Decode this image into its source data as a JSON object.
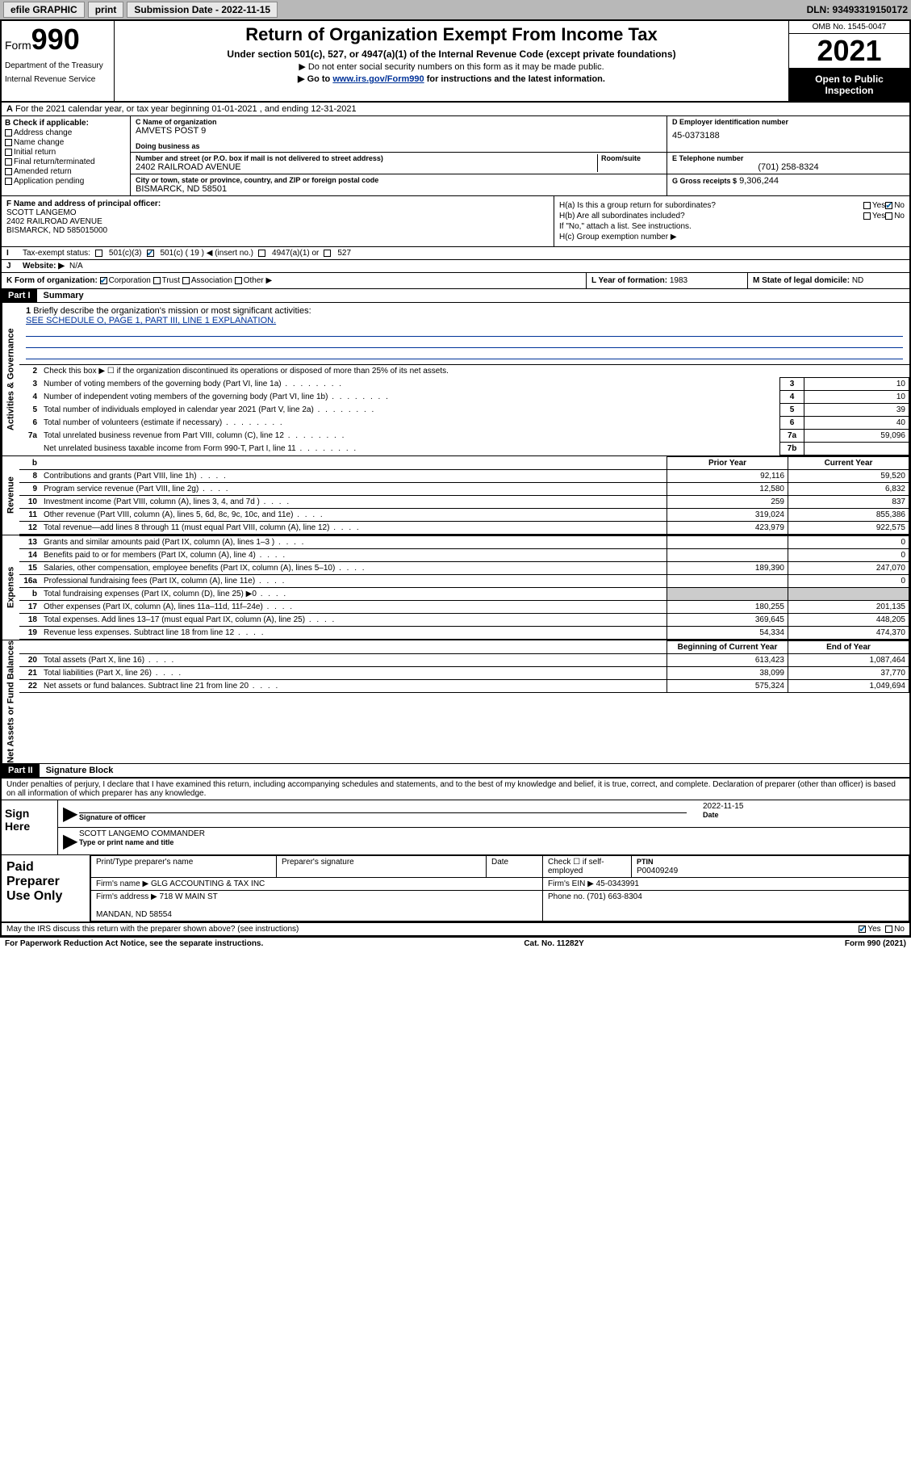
{
  "topbar": {
    "efile": "efile GRAPHIC",
    "print": "print",
    "sub_label": "Submission Date - 2022-11-15",
    "dln": "DLN: 93493319150172"
  },
  "header": {
    "form_prefix": "Form",
    "form_num": "990",
    "dept": "Department of the Treasury",
    "irs": "Internal Revenue Service",
    "title": "Return of Organization Exempt From Income Tax",
    "sub1": "Under section 501(c), 527, or 4947(a)(1) of the Internal Revenue Code (except private foundations)",
    "sub2": "▶ Do not enter social security numbers on this form as it may be made public.",
    "sub3_pre": "▶ Go to ",
    "sub3_link": "www.irs.gov/Form990",
    "sub3_post": " for instructions and the latest information.",
    "omb": "OMB No. 1545-0047",
    "year": "2021",
    "open": "Open to Public Inspection"
  },
  "row_a": "For the 2021 calendar year, or tax year beginning 01-01-2021   , and ending 12-31-2021",
  "col_b": {
    "label": "B Check if applicable:",
    "items": [
      "Address change",
      "Name change",
      "Initial return",
      "Final return/terminated",
      "Amended return",
      "Application pending"
    ]
  },
  "id": {
    "c_label": "C Name of organization",
    "c_name": "AMVETS POST 9",
    "dba_label": "Doing business as",
    "addr_label": "Number and street (or P.O. box if mail is not delivered to street address)",
    "room_label": "Room/suite",
    "addr": "2402 RAILROAD AVENUE",
    "city_label": "City or town, state or province, country, and ZIP or foreign postal code",
    "city": "BISMARCK, ND  58501",
    "d_label": "D Employer identification number",
    "d_val": "45-0373188",
    "e_label": "E Telephone number",
    "e_val": "(701) 258-8324",
    "g_label": "G Gross receipts $",
    "g_val": "9,306,244"
  },
  "f": {
    "label": "F  Name and address of principal officer:",
    "name": "SCOTT LANGEMO",
    "addr1": "2402 RAILROAD AVENUE",
    "addr2": "BISMARCK, ND  585015000"
  },
  "h": {
    "a": "H(a)  Is this a group return for subordinates?",
    "b": "H(b)  Are all subordinates included?",
    "b_note": "If \"No,\" attach a list. See instructions.",
    "c": "H(c)  Group exemption number ▶"
  },
  "i": {
    "label": "Tax-exempt status:",
    "opt1": "501(c)(3)",
    "opt2": "501(c) ( 19 ) ◀ (insert no.)",
    "opt3": "4947(a)(1) or",
    "opt4": "527"
  },
  "j": {
    "label": "Website: ▶",
    "val": "N/A"
  },
  "k": {
    "label": "K Form of organization:",
    "opts": [
      "Corporation",
      "Trust",
      "Association",
      "Other ▶"
    ]
  },
  "l": {
    "label": "L Year of formation:",
    "val": "1983"
  },
  "m": {
    "label": "M State of legal domicile:",
    "val": "ND"
  },
  "part1": {
    "tab": "Part I",
    "title": "Summary"
  },
  "vtabs": {
    "gov": "Activities & Governance",
    "rev": "Revenue",
    "exp": "Expenses",
    "net": "Net Assets or Fund Balances"
  },
  "mission": {
    "q1": "Briefly describe the organization's mission or most significant activities:",
    "line": "SEE SCHEDULE O, PAGE 1, PART III, LINE 1 EXPLANATION."
  },
  "gov_lines": [
    {
      "n": "2",
      "desc": "Check this box ▶ ☐  if the organization discontinued its operations or disposed of more than 25% of its net assets."
    },
    {
      "n": "3",
      "desc": "Number of voting members of the governing body (Part VI, line 1a)",
      "box": "3",
      "val": "10"
    },
    {
      "n": "4",
      "desc": "Number of independent voting members of the governing body (Part VI, line 1b)",
      "box": "4",
      "val": "10"
    },
    {
      "n": "5",
      "desc": "Total number of individuals employed in calendar year 2021 (Part V, line 2a)",
      "box": "5",
      "val": "39"
    },
    {
      "n": "6",
      "desc": "Total number of volunteers (estimate if necessary)",
      "box": "6",
      "val": "40"
    },
    {
      "n": "7a",
      "desc": "Total unrelated business revenue from Part VIII, column (C), line 12",
      "box": "7a",
      "val": "59,096"
    },
    {
      "n": "",
      "desc": "Net unrelated business taxable income from Form 990-T, Part I, line 11",
      "box": "7b",
      "val": ""
    }
  ],
  "fin_head": {
    "b": "b",
    "prior": "Prior Year",
    "curr": "Current Year"
  },
  "revenue": [
    {
      "n": "8",
      "desc": "Contributions and grants (Part VIII, line 1h)",
      "p": "92,116",
      "c": "59,520"
    },
    {
      "n": "9",
      "desc": "Program service revenue (Part VIII, line 2g)",
      "p": "12,580",
      "c": "6,832"
    },
    {
      "n": "10",
      "desc": "Investment income (Part VIII, column (A), lines 3, 4, and 7d )",
      "p": "259",
      "c": "837"
    },
    {
      "n": "11",
      "desc": "Other revenue (Part VIII, column (A), lines 5, 6d, 8c, 9c, 10c, and 11e)",
      "p": "319,024",
      "c": "855,386"
    },
    {
      "n": "12",
      "desc": "Total revenue—add lines 8 through 11 (must equal Part VIII, column (A), line 12)",
      "p": "423,979",
      "c": "922,575"
    }
  ],
  "expenses": [
    {
      "n": "13",
      "desc": "Grants and similar amounts paid (Part IX, column (A), lines 1–3 )",
      "p": "",
      "c": "0"
    },
    {
      "n": "14",
      "desc": "Benefits paid to or for members (Part IX, column (A), line 4)",
      "p": "",
      "c": "0"
    },
    {
      "n": "15",
      "desc": "Salaries, other compensation, employee benefits (Part IX, column (A), lines 5–10)",
      "p": "189,390",
      "c": "247,070"
    },
    {
      "n": "16a",
      "desc": "Professional fundraising fees (Part IX, column (A), line 11e)",
      "p": "",
      "c": "0"
    },
    {
      "n": "b",
      "desc": "Total fundraising expenses (Part IX, column (D), line 25) ▶0",
      "p": "GREY",
      "c": "GREY"
    },
    {
      "n": "17",
      "desc": "Other expenses (Part IX, column (A), lines 11a–11d, 11f–24e)",
      "p": "180,255",
      "c": "201,135"
    },
    {
      "n": "18",
      "desc": "Total expenses. Add lines 13–17 (must equal Part IX, column (A), line 25)",
      "p": "369,645",
      "c": "448,205"
    },
    {
      "n": "19",
      "desc": "Revenue less expenses. Subtract line 18 from line 12",
      "p": "54,334",
      "c": "474,370"
    }
  ],
  "net_head": {
    "prior": "Beginning of Current Year",
    "curr": "End of Year"
  },
  "net": [
    {
      "n": "20",
      "desc": "Total assets (Part X, line 16)",
      "p": "613,423",
      "c": "1,087,464"
    },
    {
      "n": "21",
      "desc": "Total liabilities (Part X, line 26)",
      "p": "38,099",
      "c": "37,770"
    },
    {
      "n": "22",
      "desc": "Net assets or fund balances. Subtract line 21 from line 20",
      "p": "575,324",
      "c": "1,049,694"
    }
  ],
  "part2": {
    "tab": "Part II",
    "title": "Signature Block"
  },
  "decl": "Under penalties of perjury, I declare that I have examined this return, including accompanying schedules and statements, and to the best of my knowledge and belief, it is true, correct, and complete. Declaration of preparer (other than officer) is based on all information of which preparer has any knowledge.",
  "sign": {
    "here": "Sign Here",
    "sig_label": "Signature of officer",
    "date_label": "Date",
    "date_val": "2022-11-15",
    "name": "SCOTT LANGEMO  COMMANDER",
    "name_label": "Type or print name and title"
  },
  "paid": {
    "title": "Paid Preparer Use Only",
    "h1": "Print/Type preparer's name",
    "h2": "Preparer's signature",
    "h3": "Date",
    "h4_pre": "Check ☐ if self-employed",
    "h5": "PTIN",
    "ptin": "P00409249",
    "firm_label": "Firm's name    ▶",
    "firm": "GLG ACCOUNTING & TAX INC",
    "ein_label": "Firm's EIN ▶",
    "ein": "45-0343991",
    "addr_label": "Firm's address ▶",
    "addr1": "718 W MAIN ST",
    "addr2": "MANDAN, ND  58554",
    "phone_label": "Phone no.",
    "phone": "(701) 663-8304"
  },
  "discuss": "May the IRS discuss this return with the preparer shown above? (see instructions)",
  "footer": {
    "pra": "For Paperwork Reduction Act Notice, see the separate instructions.",
    "cat": "Cat. No. 11282Y",
    "form": "Form 990 (2021)"
  }
}
